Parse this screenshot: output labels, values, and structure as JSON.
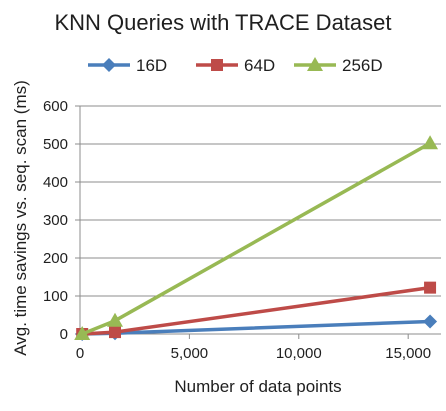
{
  "chart_data": {
    "type": "line",
    "title": "KNN Queries with TRACE Dataset",
    "xlabel": "Number of data points",
    "ylabel": "Avg. time savings vs. seq. scan (ms)",
    "xlim": [
      0,
      16500
    ],
    "ylim": [
      0,
      600
    ],
    "x_ticks": [
      0,
      5000,
      10000,
      15000
    ],
    "x_tick_labels": [
      "0",
      "5,000",
      "10,000",
      "15,000"
    ],
    "y_ticks": [
      0,
      100,
      200,
      300,
      400,
      500,
      600
    ],
    "y_tick_labels": [
      "0",
      "100",
      "200",
      "300",
      "400",
      "500",
      "600"
    ],
    "grid": "horizontal",
    "legend_position": "top",
    "series": [
      {
        "name": "16D",
        "color": "#4a7ebb",
        "marker": "diamond",
        "points": [
          [
            100,
            0
          ],
          [
            1600,
            2
          ],
          [
            16000,
            33
          ]
        ]
      },
      {
        "name": "64D",
        "color": "#be4b48",
        "marker": "square",
        "points": [
          [
            100,
            0
          ],
          [
            1600,
            5
          ],
          [
            16000,
            122
          ]
        ]
      },
      {
        "name": "256D",
        "color": "#98b954",
        "marker": "triangle",
        "points": [
          [
            100,
            0
          ],
          [
            1600,
            35
          ],
          [
            16000,
            502
          ]
        ]
      }
    ]
  }
}
